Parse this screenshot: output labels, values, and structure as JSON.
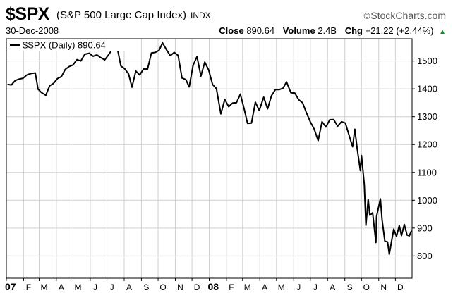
{
  "header": {
    "symbol": "$SPX",
    "name": "(S&P 500 Large Cap Index)",
    "exchange": "INDX",
    "watermark": "StockCharts.com",
    "watermark_symbol": "©",
    "date": "30-Dec-2008",
    "close_label": "Close",
    "close_value": "890.64",
    "volume_label": "Volume",
    "volume_value": "2.4B",
    "chg_label": "Chg",
    "chg_value": "+21.22 (+2.44%)",
    "chg_arrow": "▲"
  },
  "colors": {
    "line": "#000000",
    "grid": "#d0d0d0",
    "frame": "#000000",
    "up": "#1a8a2a"
  },
  "chart_data": {
    "type": "line",
    "legend": "$SPX (Daily) 890.64",
    "legend_position": "top-left",
    "grid": true,
    "ylim": [
      720,
      1580
    ],
    "yticks": [
      800,
      900,
      1000,
      1100,
      1200,
      1300,
      1400,
      1500
    ],
    "ytick_labels": [
      "800",
      "900",
      "1000",
      "1100",
      "1200",
      "1300",
      "1400",
      "1500"
    ],
    "xticks": [
      {
        "label": "07",
        "x": "2007-01-01",
        "bold": true
      },
      {
        "label": "F",
        "x": "2007-02-01"
      },
      {
        "label": "M",
        "x": "2007-03-01"
      },
      {
        "label": "A",
        "x": "2007-04-01"
      },
      {
        "label": "M",
        "x": "2007-05-01"
      },
      {
        "label": "J",
        "x": "2007-06-01"
      },
      {
        "label": "J",
        "x": "2007-07-01"
      },
      {
        "label": "A",
        "x": "2007-08-01"
      },
      {
        "label": "S",
        "x": "2007-09-01"
      },
      {
        "label": "O",
        "x": "2007-10-01"
      },
      {
        "label": "N",
        "x": "2007-11-01"
      },
      {
        "label": "D",
        "x": "2007-12-01"
      },
      {
        "label": "08",
        "x": "2008-01-01",
        "bold": true
      },
      {
        "label": "F",
        "x": "2008-02-01"
      },
      {
        "label": "M",
        "x": "2008-03-01"
      },
      {
        "label": "A",
        "x": "2008-04-01"
      },
      {
        "label": "M",
        "x": "2008-05-01"
      },
      {
        "label": "J",
        "x": "2008-06-01"
      },
      {
        "label": "J",
        "x": "2008-07-01"
      },
      {
        "label": "A",
        "x": "2008-08-01"
      },
      {
        "label": "S",
        "x": "2008-09-01"
      },
      {
        "label": "O",
        "x": "2008-10-01"
      },
      {
        "label": "N",
        "x": "2008-11-01"
      },
      {
        "label": "D",
        "x": "2008-12-01"
      }
    ],
    "xlim": [
      "2007-01-01",
      "2008-12-31"
    ],
    "series": [
      {
        "x": [
          "2007-01-03",
          "2007-01-10",
          "2007-01-17",
          "2007-01-24",
          "2007-01-31",
          "2007-02-07",
          "2007-02-14",
          "2007-02-22",
          "2007-02-27",
          "2007-03-05",
          "2007-03-13",
          "2007-03-20",
          "2007-03-27",
          "2007-04-03",
          "2007-04-10",
          "2007-04-17",
          "2007-04-24",
          "2007-05-01",
          "2007-05-08",
          "2007-05-15",
          "2007-05-22",
          "2007-05-30",
          "2007-06-06",
          "2007-06-13",
          "2007-06-20",
          "2007-06-27",
          "2007-07-05",
          "2007-07-12",
          "2007-07-19",
          "2007-07-26",
          "2007-08-02",
          "2007-08-09",
          "2007-08-15",
          "2007-08-22",
          "2007-08-29",
          "2007-09-05",
          "2007-09-12",
          "2007-09-19",
          "2007-09-26",
          "2007-10-03",
          "2007-10-09",
          "2007-10-16",
          "2007-10-23",
          "2007-10-30",
          "2007-11-06",
          "2007-11-13",
          "2007-11-20",
          "2007-11-26",
          "2007-12-03",
          "2007-12-10",
          "2007-12-17",
          "2007-12-24",
          "2007-12-31",
          "2008-01-07",
          "2008-01-14",
          "2008-01-22",
          "2008-01-29",
          "2008-02-05",
          "2008-02-12",
          "2008-02-19",
          "2008-02-26",
          "2008-03-04",
          "2008-03-10",
          "2008-03-17",
          "2008-03-24",
          "2008-03-31",
          "2008-04-08",
          "2008-04-15",
          "2008-04-22",
          "2008-04-29",
          "2008-05-06",
          "2008-05-13",
          "2008-05-19",
          "2008-05-27",
          "2008-06-03",
          "2008-06-10",
          "2008-06-17",
          "2008-06-24",
          "2008-07-01",
          "2008-07-08",
          "2008-07-15",
          "2008-07-22",
          "2008-07-29",
          "2008-08-05",
          "2008-08-12",
          "2008-08-19",
          "2008-08-26",
          "2008-09-02",
          "2008-09-09",
          "2008-09-15",
          "2008-09-19",
          "2008-09-23",
          "2008-09-29",
          "2008-10-01",
          "2008-10-06",
          "2008-10-09",
          "2008-10-13",
          "2008-10-16",
          "2008-10-21",
          "2008-10-27",
          "2008-10-28",
          "2008-11-04",
          "2008-11-07",
          "2008-11-12",
          "2008-11-17",
          "2008-11-20",
          "2008-11-24",
          "2008-11-28",
          "2008-12-03",
          "2008-12-08",
          "2008-12-12",
          "2008-12-17",
          "2008-12-22",
          "2008-12-26",
          "2008-12-30"
        ],
        "y": [
          1416,
          1414,
          1430,
          1435,
          1438,
          1450,
          1455,
          1457,
          1399,
          1387,
          1377,
          1411,
          1420,
          1437,
          1444,
          1470,
          1480,
          1486,
          1505,
          1500,
          1524,
          1528,
          1517,
          1522,
          1512,
          1504,
          1525,
          1547,
          1553,
          1482,
          1472,
          1453,
          1406,
          1464,
          1450,
          1472,
          1471,
          1529,
          1531,
          1539,
          1565,
          1541,
          1519,
          1531,
          1520,
          1439,
          1433,
          1407,
          1485,
          1516,
          1446,
          1496,
          1468,
          1416,
          1401,
          1310,
          1362,
          1336,
          1349,
          1350,
          1381,
          1327,
          1276,
          1277,
          1352,
          1322,
          1370,
          1328,
          1375,
          1397,
          1397,
          1403,
          1425,
          1386,
          1385,
          1361,
          1350,
          1314,
          1281,
          1255,
          1214,
          1282,
          1263,
          1289,
          1290,
          1266,
          1282,
          1277,
          1231,
          1192,
          1255,
          1189,
          1106,
          1161,
          1056,
          910,
          1003,
          946,
          955,
          848,
          941,
          1005,
          930,
          853,
          850,
          806,
          852,
          896,
          870,
          909,
          873,
          913,
          875,
          872,
          891
        ]
      }
    ]
  }
}
